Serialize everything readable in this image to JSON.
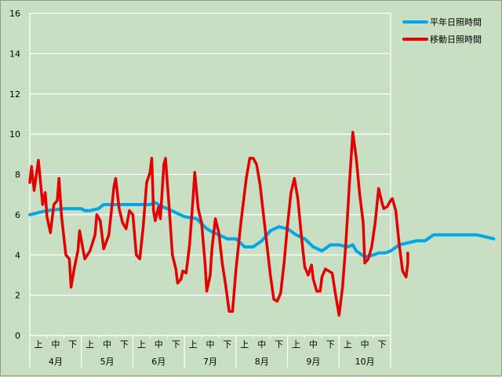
{
  "chart_data": {
    "type": "line",
    "ylim": [
      0,
      16
    ],
    "y_ticks": [
      "0",
      "2",
      "4",
      "6",
      "8",
      "10",
      "12",
      "14",
      "16"
    ],
    "grid": true,
    "legend_position": "top-right",
    "months": [
      "4月",
      "5月",
      "6月",
      "7月",
      "8月",
      "9月",
      "10月"
    ],
    "dekads": [
      "上",
      "中",
      "下"
    ],
    "x_unit": "dekad index (0-21, each month split into 上/中/下)",
    "series": [
      {
        "name": "平年日照時間",
        "color": "#00a6e6",
        "points": [
          [
            0.0,
            6.0
          ],
          [
            0.5,
            6.1
          ],
          [
            1.0,
            6.2
          ],
          [
            2.0,
            6.3
          ],
          [
            3.0,
            6.3
          ],
          [
            3.2,
            6.2
          ],
          [
            3.5,
            6.2
          ],
          [
            4.0,
            6.3
          ],
          [
            4.3,
            6.5
          ],
          [
            5.0,
            6.5
          ],
          [
            5.5,
            6.5
          ],
          [
            6.0,
            6.5
          ],
          [
            6.5,
            6.5
          ],
          [
            7.0,
            6.5
          ],
          [
            7.3,
            6.6
          ],
          [
            7.7,
            6.4
          ],
          [
            8.0,
            6.3
          ],
          [
            8.5,
            6.1
          ],
          [
            9.0,
            5.9
          ],
          [
            9.7,
            5.8
          ],
          [
            10.3,
            5.3
          ],
          [
            10.7,
            5.1
          ],
          [
            11.0,
            5.0
          ],
          [
            11.5,
            4.8
          ],
          [
            12.0,
            4.8
          ],
          [
            12.5,
            4.4
          ],
          [
            13.0,
            4.4
          ],
          [
            13.5,
            4.7
          ],
          [
            14.0,
            5.2
          ],
          [
            14.5,
            5.4
          ],
          [
            15.0,
            5.3
          ],
          [
            15.5,
            5.0
          ],
          [
            16.0,
            4.8
          ],
          [
            16.5,
            4.4
          ],
          [
            17.0,
            4.2
          ],
          [
            17.5,
            4.5
          ],
          [
            18.0,
            4.5
          ],
          [
            18.5,
            4.4
          ],
          [
            18.8,
            4.5
          ],
          [
            19.0,
            4.2
          ],
          [
            19.5,
            3.9
          ],
          [
            20.0,
            4.0
          ],
          [
            20.3,
            4.1
          ],
          [
            20.7,
            4.1
          ],
          [
            21.0,
            4.2
          ],
          [
            21.5,
            4.5
          ],
          [
            22.0,
            4.6
          ],
          [
            22.5,
            4.7
          ],
          [
            23.0,
            4.7
          ],
          [
            23.5,
            5.0
          ],
          [
            24.0,
            5.0
          ],
          [
            24.5,
            5.0
          ],
          [
            25.0,
            5.0
          ],
          [
            25.5,
            5.0
          ],
          [
            26.0,
            5.0
          ],
          [
            26.5,
            4.9
          ],
          [
            27.0,
            4.8
          ]
        ]
      },
      {
        "name": "移動日照時間",
        "color": "#e30000",
        "points": [
          [
            0.0,
            7.6
          ],
          [
            0.1,
            8.4
          ],
          [
            0.25,
            7.2
          ],
          [
            0.5,
            8.7
          ],
          [
            0.75,
            6.5
          ],
          [
            0.9,
            7.1
          ],
          [
            1.0,
            5.9
          ],
          [
            1.2,
            5.1
          ],
          [
            1.4,
            6.5
          ],
          [
            1.6,
            6.7
          ],
          [
            1.7,
            7.8
          ],
          [
            1.85,
            5.9
          ],
          [
            2.1,
            4.0
          ],
          [
            2.3,
            3.8
          ],
          [
            2.4,
            2.4
          ],
          [
            2.6,
            3.4
          ],
          [
            2.8,
            4.2
          ],
          [
            2.9,
            5.2
          ],
          [
            3.2,
            3.8
          ],
          [
            3.5,
            4.2
          ],
          [
            3.8,
            5.0
          ],
          [
            3.9,
            6.0
          ],
          [
            4.1,
            5.7
          ],
          [
            4.3,
            4.3
          ],
          [
            4.6,
            5.0
          ],
          [
            4.9,
            7.4
          ],
          [
            5.0,
            7.8
          ],
          [
            5.2,
            6.3
          ],
          [
            5.4,
            5.6
          ],
          [
            5.6,
            5.3
          ],
          [
            5.8,
            6.2
          ],
          [
            6.0,
            6.0
          ],
          [
            6.2,
            4.0
          ],
          [
            6.4,
            3.8
          ],
          [
            6.6,
            5.4
          ],
          [
            6.8,
            7.6
          ],
          [
            7.0,
            8.1
          ],
          [
            7.1,
            8.8
          ],
          [
            7.2,
            6.2
          ],
          [
            7.3,
            5.7
          ],
          [
            7.5,
            6.4
          ],
          [
            7.6,
            5.8
          ],
          [
            7.8,
            8.5
          ],
          [
            7.9,
            8.8
          ],
          [
            8.1,
            6.5
          ],
          [
            8.3,
            4.0
          ],
          [
            8.5,
            3.3
          ],
          [
            8.6,
            2.6
          ],
          [
            8.8,
            2.8
          ],
          [
            8.9,
            3.2
          ],
          [
            9.1,
            3.1
          ],
          [
            9.3,
            4.5
          ],
          [
            9.5,
            6.8
          ],
          [
            9.6,
            8.1
          ],
          [
            9.8,
            6.3
          ],
          [
            10.0,
            5.6
          ],
          [
            10.2,
            3.6
          ],
          [
            10.3,
            2.2
          ],
          [
            10.5,
            3.0
          ],
          [
            10.6,
            4.3
          ],
          [
            10.8,
            5.8
          ],
          [
            11.0,
            5.1
          ],
          [
            11.2,
            3.6
          ],
          [
            11.4,
            2.5
          ],
          [
            11.6,
            1.2
          ],
          [
            11.8,
            1.2
          ],
          [
            12.0,
            3.3
          ],
          [
            12.3,
            5.7
          ],
          [
            12.6,
            7.8
          ],
          [
            12.8,
            8.8
          ],
          [
            13.0,
            8.8
          ],
          [
            13.2,
            8.5
          ],
          [
            13.4,
            7.5
          ],
          [
            13.6,
            6.0
          ],
          [
            13.8,
            4.5
          ],
          [
            14.0,
            3.0
          ],
          [
            14.2,
            1.8
          ],
          [
            14.4,
            1.7
          ],
          [
            14.6,
            2.1
          ],
          [
            14.8,
            3.6
          ],
          [
            15.0,
            5.5
          ],
          [
            15.2,
            7.1
          ],
          [
            15.4,
            7.8
          ],
          [
            15.6,
            6.8
          ],
          [
            15.8,
            5.0
          ],
          [
            16.0,
            3.4
          ],
          [
            16.2,
            3.0
          ],
          [
            16.4,
            3.5
          ],
          [
            16.5,
            2.8
          ],
          [
            16.7,
            2.2
          ],
          [
            16.9,
            2.2
          ],
          [
            17.0,
            2.9
          ],
          [
            17.2,
            3.3
          ],
          [
            17.4,
            3.2
          ],
          [
            17.6,
            3.1
          ],
          [
            17.8,
            2.0
          ],
          [
            18.0,
            1.0
          ],
          [
            18.2,
            2.4
          ],
          [
            18.4,
            4.6
          ],
          [
            18.6,
            7.5
          ],
          [
            18.8,
            10.1
          ],
          [
            19.0,
            8.8
          ],
          [
            19.2,
            7.0
          ],
          [
            19.4,
            5.6
          ],
          [
            19.5,
            3.6
          ],
          [
            19.7,
            3.8
          ],
          [
            19.9,
            4.4
          ],
          [
            20.1,
            5.6
          ],
          [
            20.3,
            7.3
          ],
          [
            20.5,
            6.6
          ],
          [
            20.6,
            6.3
          ],
          [
            20.8,
            6.4
          ],
          [
            21.0,
            6.7
          ],
          [
            21.1,
            6.8
          ],
          [
            21.3,
            6.2
          ],
          [
            21.5,
            4.5
          ],
          [
            21.7,
            3.2
          ],
          [
            21.9,
            2.9
          ],
          [
            22.0,
            3.6
          ],
          [
            22.0,
            4.1
          ]
        ]
      }
    ]
  }
}
